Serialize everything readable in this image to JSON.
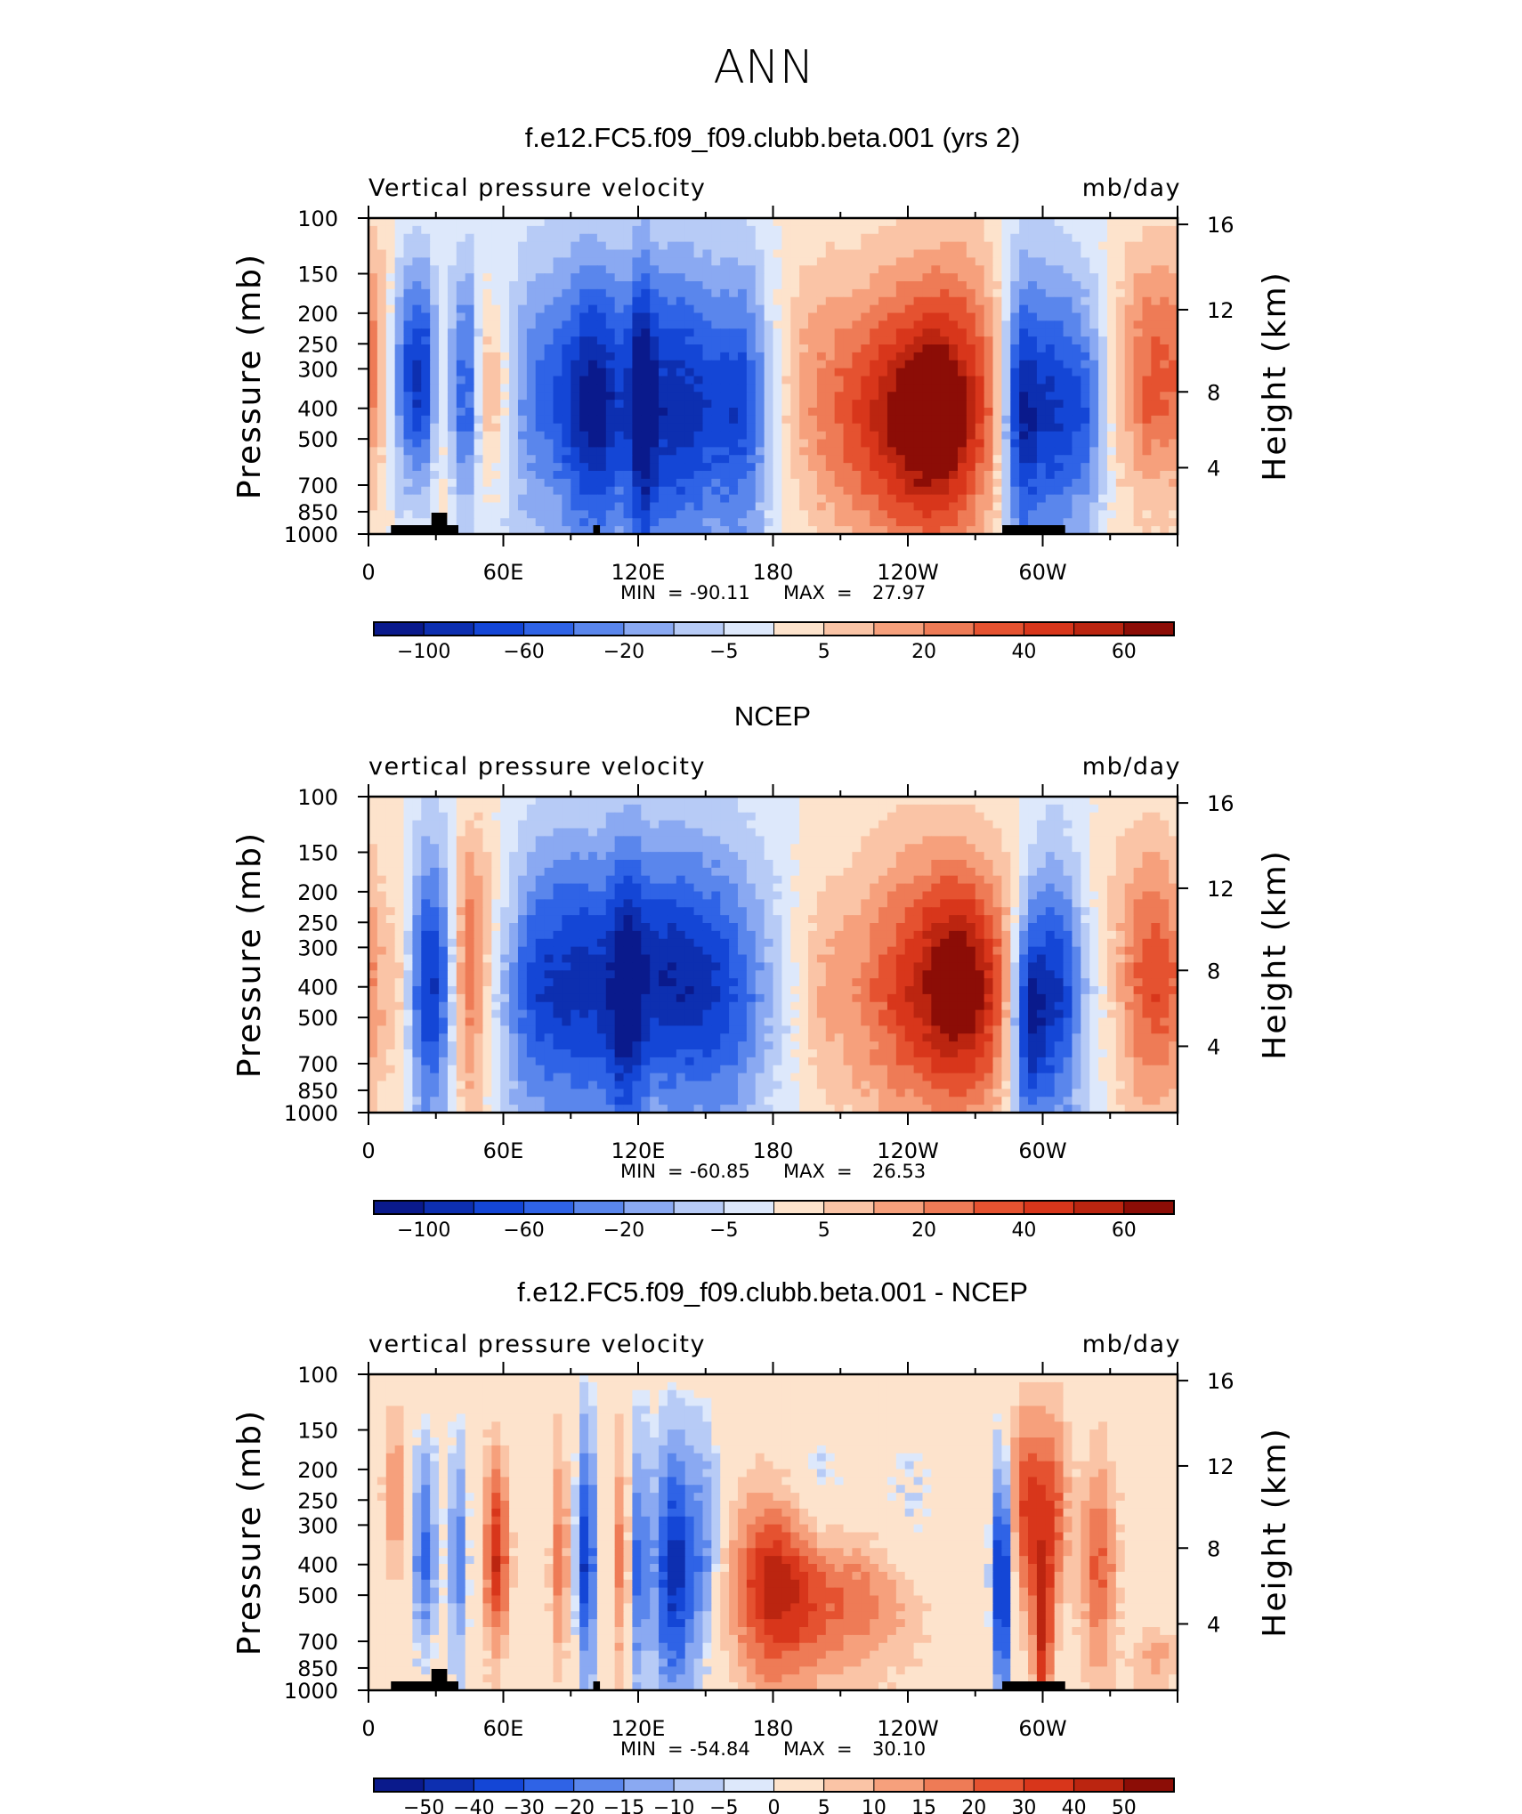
{
  "page_title": "ANN",
  "chart_data": [
    {
      "type": "heatmap",
      "title": "f.e12.FC5.f09_f09.clubb.beta.001 (yrs 2)",
      "left_label": "Vertical pressure velocity",
      "right_label": "mb/day",
      "ylabel": "Pressure (mb)",
      "y2label": "Height (km)",
      "y_ticks": [
        "100",
        "150",
        "200",
        "250",
        "300",
        "400",
        "500",
        "700",
        "850",
        "1000"
      ],
      "y2_ticks": [
        "16",
        "12",
        "8",
        "4"
      ],
      "x_ticks": [
        "0",
        "60E",
        "120E",
        "180",
        "120W",
        "60W"
      ],
      "ylim": [
        1000,
        100
      ],
      "xlim": [
        0,
        360
      ],
      "stats": {
        "min_label": "MIN",
        "min": "-90.11",
        "max_label": "MAX",
        "max": "27.97"
      },
      "colorbar_labels": [
        "-100",
        "-60",
        "-20",
        "-5",
        "5",
        "20",
        "40",
        "60"
      ],
      "colorbar_colors": [
        "#0a1a8c",
        "#0d2fb0",
        "#1446d6",
        "#2f63e6",
        "#5a86ec",
        "#8aa9f2",
        "#b7cbf6",
        "#dde8fb",
        "#fde3cc",
        "#fac4a6",
        "#f6a07c",
        "#ee7b56",
        "#e55230",
        "#d8361b",
        "#bb2510",
        "#8c0d06"
      ],
      "land_mask": true
    },
    {
      "type": "heatmap",
      "title": "NCEP",
      "left_label": "vertical pressure velocity",
      "right_label": "mb/day",
      "ylabel": "Pressure (mb)",
      "y2label": "Height (km)",
      "y_ticks": [
        "100",
        "150",
        "200",
        "250",
        "300",
        "400",
        "500",
        "700",
        "850",
        "1000"
      ],
      "y2_ticks": [
        "16",
        "12",
        "8",
        "4"
      ],
      "x_ticks": [
        "0",
        "60E",
        "120E",
        "180",
        "120W",
        "60W"
      ],
      "ylim": [
        1000,
        100
      ],
      "xlim": [
        0,
        360
      ],
      "stats": {
        "min_label": "MIN",
        "min": "-60.85",
        "max_label": "MAX",
        "max": "26.53"
      },
      "colorbar_labels": [
        "-100",
        "-60",
        "-20",
        "-5",
        "5",
        "20",
        "40",
        "60"
      ],
      "colorbar_colors": [
        "#0a1a8c",
        "#0d2fb0",
        "#1446d6",
        "#2f63e6",
        "#5a86ec",
        "#8aa9f2",
        "#b7cbf6",
        "#dde8fb",
        "#fde3cc",
        "#fac4a6",
        "#f6a07c",
        "#ee7b56",
        "#e55230",
        "#d8361b",
        "#bb2510",
        "#8c0d06"
      ],
      "land_mask": false
    },
    {
      "type": "heatmap",
      "title": "f.e12.FC5.f09_f09.clubb.beta.001 - NCEP",
      "left_label": "vertical pressure velocity",
      "right_label": "mb/day",
      "ylabel": "Pressure (mb)",
      "y2label": "Height (km)",
      "y_ticks": [
        "100",
        "150",
        "200",
        "250",
        "300",
        "400",
        "500",
        "700",
        "850",
        "1000"
      ],
      "y2_ticks": [
        "16",
        "12",
        "8",
        "4"
      ],
      "x_ticks": [
        "0",
        "60E",
        "120E",
        "180",
        "120W",
        "60W"
      ],
      "ylim": [
        1000,
        100
      ],
      "xlim": [
        0,
        360
      ],
      "stats": {
        "min_label": "MIN",
        "min": "-54.84",
        "max_label": "MAX",
        "max": "30.10"
      },
      "colorbar_labels": [
        "-50",
        "-40",
        "-30",
        "-20",
        "-15",
        "-10",
        "-5",
        "0",
        "5",
        "10",
        "15",
        "20",
        "30",
        "40",
        "50"
      ],
      "colorbar_colors": [
        "#0a1a8c",
        "#0d2fb0",
        "#1446d6",
        "#2f63e6",
        "#5a86ec",
        "#8aa9f2",
        "#b7cbf6",
        "#dde8fb",
        "#fde3cc",
        "#fac4a6",
        "#f6a07c",
        "#ee7b56",
        "#e55230",
        "#d8361b",
        "#bb2510",
        "#8c0d06"
      ],
      "land_mask": true
    }
  ]
}
